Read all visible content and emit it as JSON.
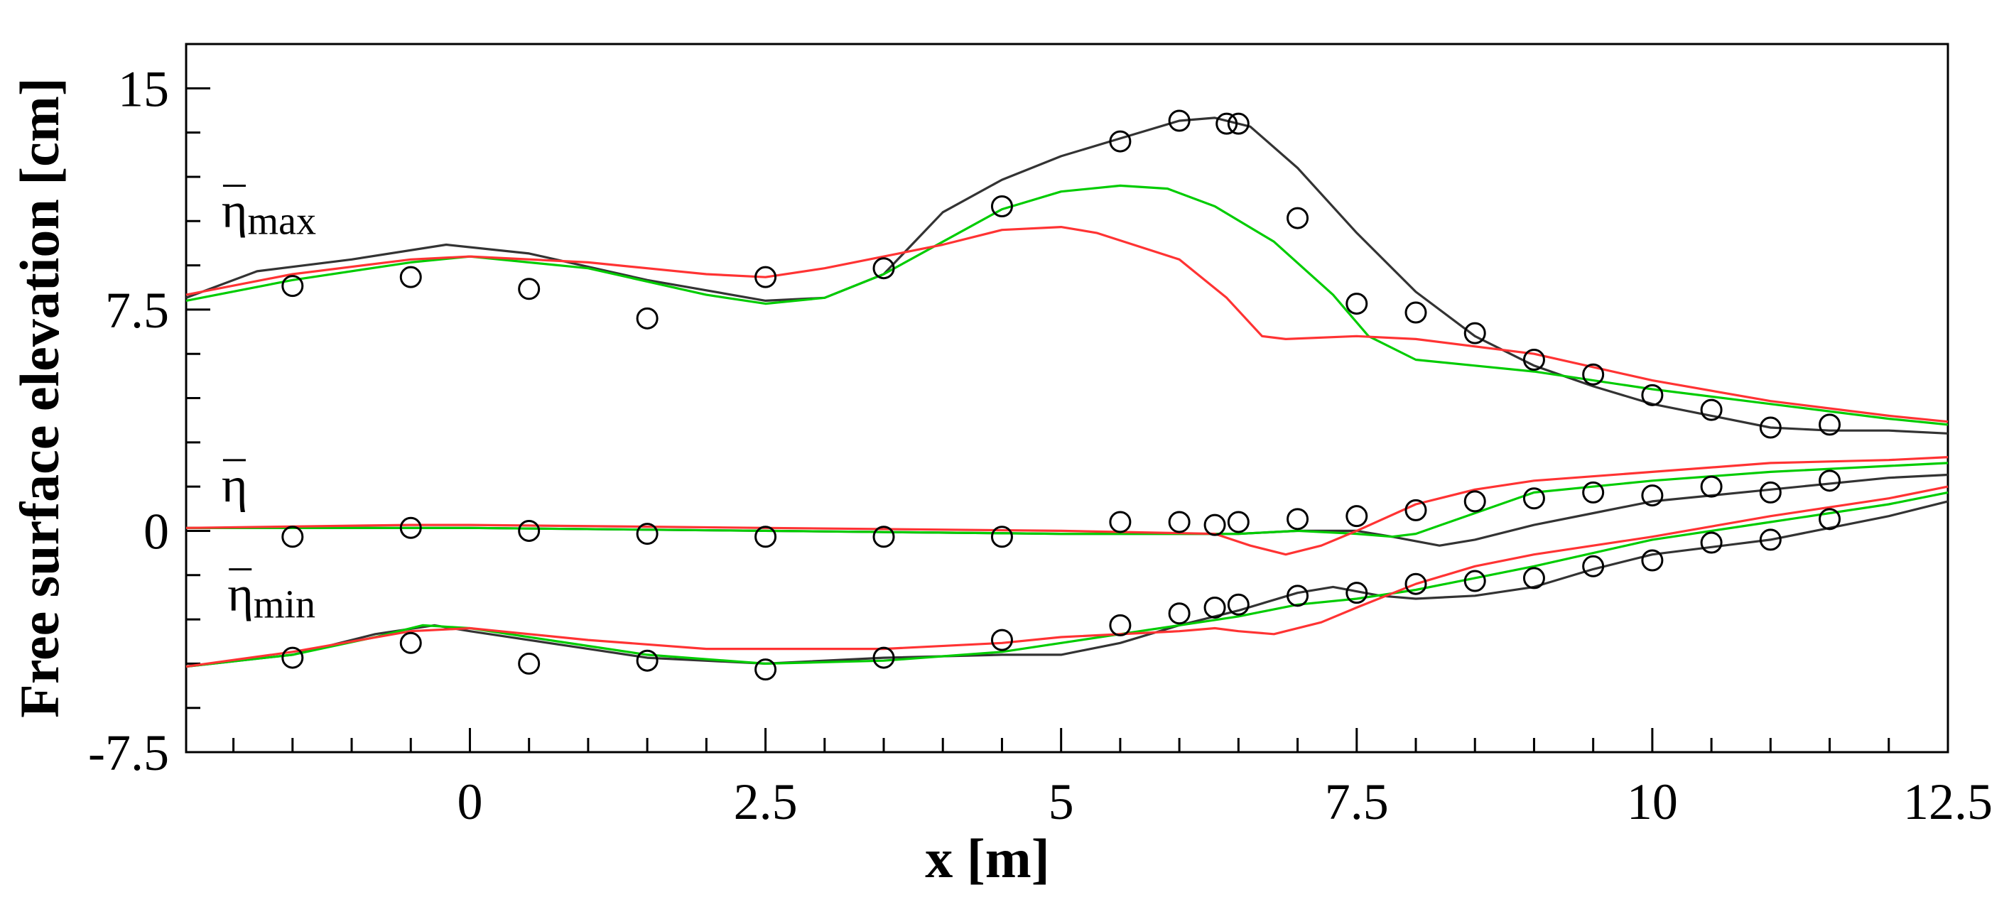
{
  "chart_data": {
    "type": "line",
    "title": "",
    "xlabel": "x [m]",
    "ylabel": "Free surface elevation [cm]",
    "xlim": [
      -2.4,
      12.5
    ],
    "ylim": [
      -7.5,
      16.5
    ],
    "xticks": [
      0,
      2.5,
      5,
      7.5,
      10,
      12.5
    ],
    "xtick_labels": [
      "0",
      "2.5",
      "5",
      "7.5",
      "10",
      "12.5"
    ],
    "yticks": [
      -7.5,
      0,
      7.5,
      15
    ],
    "ytick_labels": [
      "-7.5",
      "0",
      "7.5",
      "15"
    ],
    "grid": false,
    "legend": "none",
    "annotations": [
      {
        "base": "η",
        "sub": "max",
        "x": -2.1,
        "y": 10.3
      },
      {
        "base": "η",
        "sub": "",
        "x": -2.1,
        "y": 1.0
      },
      {
        "base": "η",
        "sub": "min",
        "x": -2.05,
        "y": -2.7
      }
    ],
    "series": [
      {
        "name": "black-max",
        "kind": "line",
        "color": "#333333",
        "x": [
          -2.4,
          -1.8,
          -1.0,
          -0.2,
          0.5,
          1.5,
          2.5,
          3.0,
          3.5,
          4.0,
          4.5,
          5.0,
          5.5,
          6.0,
          6.3,
          6.6,
          7.0,
          7.5,
          8.0,
          8.5,
          9.0,
          9.5,
          10.0,
          10.5,
          11.0,
          11.5,
          12.0,
          12.5
        ],
        "y": [
          7.9,
          8.8,
          9.2,
          9.7,
          9.4,
          8.5,
          7.8,
          7.9,
          8.7,
          10.8,
          11.9,
          12.7,
          13.3,
          13.9,
          14.0,
          13.7,
          12.3,
          10.1,
          8.1,
          6.6,
          5.6,
          4.9,
          4.3,
          3.9,
          3.5,
          3.4,
          3.4,
          3.3
        ]
      },
      {
        "name": "green-max",
        "kind": "line",
        "color": "#00cc00",
        "x": [
          -2.4,
          -1.5,
          -0.5,
          0.0,
          1.0,
          2.0,
          2.5,
          3.0,
          3.5,
          4.0,
          4.5,
          5.0,
          5.5,
          5.9,
          6.3,
          6.8,
          7.3,
          7.6,
          8.0,
          8.5,
          9.0,
          10.0,
          11.0,
          12.0,
          12.5
        ],
        "y": [
          7.8,
          8.5,
          9.1,
          9.3,
          8.9,
          8.0,
          7.7,
          7.9,
          8.7,
          9.8,
          10.9,
          11.5,
          11.7,
          11.6,
          11.0,
          9.8,
          8.0,
          6.6,
          5.8,
          5.6,
          5.4,
          4.8,
          4.3,
          3.8,
          3.6
        ]
      },
      {
        "name": "red-max",
        "kind": "line",
        "color": "#ff3333",
        "x": [
          -2.4,
          -1.5,
          -0.5,
          0.0,
          1.0,
          2.0,
          2.5,
          3.0,
          4.0,
          4.5,
          5.0,
          5.3,
          6.0,
          6.4,
          6.7,
          6.9,
          7.5,
          8.0,
          9.0,
          10.0,
          11.0,
          12.0,
          12.5
        ],
        "y": [
          8.0,
          8.7,
          9.2,
          9.3,
          9.1,
          8.7,
          8.6,
          8.9,
          9.7,
          10.2,
          10.3,
          10.1,
          9.2,
          7.9,
          6.6,
          6.5,
          6.6,
          6.5,
          6.0,
          5.1,
          4.4,
          3.9,
          3.7
        ]
      },
      {
        "name": "black-mean",
        "kind": "line",
        "color": "#333333",
        "x": [
          -2.4,
          0.0,
          2.5,
          5.0,
          6.5,
          7.0,
          7.5,
          7.8,
          8.2,
          8.5,
          9.0,
          9.5,
          10.0,
          11.0,
          12.0,
          12.5
        ],
        "y": [
          0.1,
          0.1,
          0.0,
          -0.1,
          -0.1,
          0.0,
          0.0,
          -0.2,
          -0.5,
          -0.3,
          0.2,
          0.6,
          1.0,
          1.4,
          1.8,
          1.9
        ]
      },
      {
        "name": "green-mean",
        "kind": "line",
        "color": "#00cc00",
        "x": [
          -2.4,
          0.0,
          2.5,
          5.0,
          6.5,
          7.0,
          7.5,
          7.8,
          8.0,
          8.5,
          9.0,
          10.0,
          11.0,
          12.0,
          12.5
        ],
        "y": [
          0.1,
          0.1,
          0.0,
          -0.1,
          -0.1,
          0.0,
          -0.1,
          -0.2,
          -0.1,
          0.6,
          1.3,
          1.7,
          2.0,
          2.2,
          2.3
        ]
      },
      {
        "name": "red-mean",
        "kind": "line",
        "color": "#ff3333",
        "x": [
          -2.4,
          -0.5,
          0.0,
          2.5,
          5.0,
          6.3,
          6.6,
          6.9,
          7.2,
          7.5,
          8.0,
          8.5,
          9.0,
          10.0,
          11.0,
          12.0,
          12.5
        ],
        "y": [
          0.1,
          0.2,
          0.2,
          0.1,
          0.0,
          -0.1,
          -0.5,
          -0.8,
          -0.5,
          0.0,
          0.9,
          1.4,
          1.7,
          2.0,
          2.3,
          2.4,
          2.5
        ]
      },
      {
        "name": "black-min",
        "kind": "line",
        "color": "#333333",
        "x": [
          -2.4,
          -1.5,
          -0.8,
          -0.3,
          0.0,
          1.0,
          1.5,
          2.5,
          3.5,
          4.5,
          5.0,
          5.5,
          6.0,
          6.5,
          7.0,
          7.3,
          7.7,
          8.0,
          8.5,
          9.0,
          9.5,
          10.0,
          11.0,
          12.0,
          12.5
        ],
        "y": [
          -4.6,
          -4.2,
          -3.5,
          -3.2,
          -3.4,
          -4.0,
          -4.3,
          -4.5,
          -4.3,
          -4.2,
          -4.2,
          -3.8,
          -3.2,
          -2.7,
          -2.1,
          -1.9,
          -2.2,
          -2.3,
          -2.2,
          -1.9,
          -1.3,
          -0.8,
          -0.3,
          0.5,
          1.0
        ]
      },
      {
        "name": "green-min",
        "kind": "line",
        "color": "#00cc00",
        "x": [
          -2.4,
          -1.5,
          -0.8,
          -0.4,
          0.0,
          1.0,
          1.5,
          2.5,
          3.5,
          4.5,
          5.0,
          5.5,
          6.0,
          6.5,
          7.0,
          7.5,
          8.0,
          8.5,
          9.0,
          10.0,
          11.0,
          12.0,
          12.5
        ],
        "y": [
          -4.6,
          -4.2,
          -3.6,
          -3.2,
          -3.3,
          -3.9,
          -4.2,
          -4.5,
          -4.4,
          -4.1,
          -3.8,
          -3.5,
          -3.2,
          -2.9,
          -2.5,
          -2.3,
          -2.0,
          -1.6,
          -1.2,
          -0.3,
          0.3,
          0.9,
          1.3
        ]
      },
      {
        "name": "red-min",
        "kind": "line",
        "color": "#ff3333",
        "x": [
          -2.4,
          -1.5,
          -0.5,
          0.0,
          1.0,
          2.0,
          2.5,
          3.5,
          4.5,
          5.0,
          6.0,
          6.3,
          6.5,
          6.8,
          7.2,
          7.5,
          8.0,
          8.5,
          9.0,
          10.0,
          11.0,
          12.0,
          12.5
        ],
        "y": [
          -4.6,
          -4.1,
          -3.4,
          -3.3,
          -3.7,
          -4.0,
          -4.0,
          -4.0,
          -3.8,
          -3.6,
          -3.4,
          -3.3,
          -3.4,
          -3.5,
          -3.1,
          -2.6,
          -1.8,
          -1.2,
          -0.8,
          -0.2,
          0.5,
          1.1,
          1.5
        ]
      },
      {
        "name": "measured-max",
        "kind": "scatter",
        "x": [
          -1.5,
          -0.5,
          0.5,
          1.5,
          2.5,
          3.5,
          4.5,
          5.5,
          6.0,
          6.4,
          6.5,
          7.0,
          7.5,
          8.0,
          8.5,
          9.0,
          9.5,
          10.0,
          10.5,
          11.0,
          11.5
        ],
        "y": [
          8.3,
          8.6,
          8.2,
          7.2,
          8.6,
          8.9,
          11.0,
          13.2,
          13.9,
          13.8,
          13.8,
          10.6,
          7.7,
          7.4,
          6.7,
          5.8,
          5.3,
          4.6,
          4.1,
          3.5,
          3.6
        ]
      },
      {
        "name": "measured-mean",
        "kind": "scatter",
        "x": [
          -1.5,
          -0.5,
          0.5,
          1.5,
          2.5,
          3.5,
          4.5,
          5.5,
          6.0,
          6.3,
          6.5,
          7.0,
          7.5,
          8.0,
          8.5,
          9.0,
          9.5,
          10.0,
          10.5,
          11.0,
          11.5
        ],
        "y": [
          -0.2,
          0.1,
          0.0,
          -0.1,
          -0.2,
          -0.2,
          -0.2,
          0.3,
          0.3,
          0.2,
          0.3,
          0.4,
          0.5,
          0.7,
          1.0,
          1.1,
          1.3,
          1.2,
          1.5,
          1.3,
          1.7
        ]
      },
      {
        "name": "measured-min",
        "kind": "scatter",
        "x": [
          -1.5,
          -0.5,
          0.5,
          1.5,
          2.5,
          3.5,
          4.5,
          5.5,
          6.0,
          6.3,
          6.5,
          7.0,
          7.5,
          8.0,
          8.5,
          9.0,
          9.5,
          10.0,
          10.5,
          11.0,
          11.5
        ],
        "y": [
          -4.3,
          -3.8,
          -4.5,
          -4.4,
          -4.7,
          -4.3,
          -3.7,
          -3.2,
          -2.8,
          -2.6,
          -2.5,
          -2.2,
          -2.1,
          -1.8,
          -1.7,
          -1.6,
          -1.2,
          -1.0,
          -0.4,
          -0.3,
          0.4
        ]
      }
    ]
  }
}
